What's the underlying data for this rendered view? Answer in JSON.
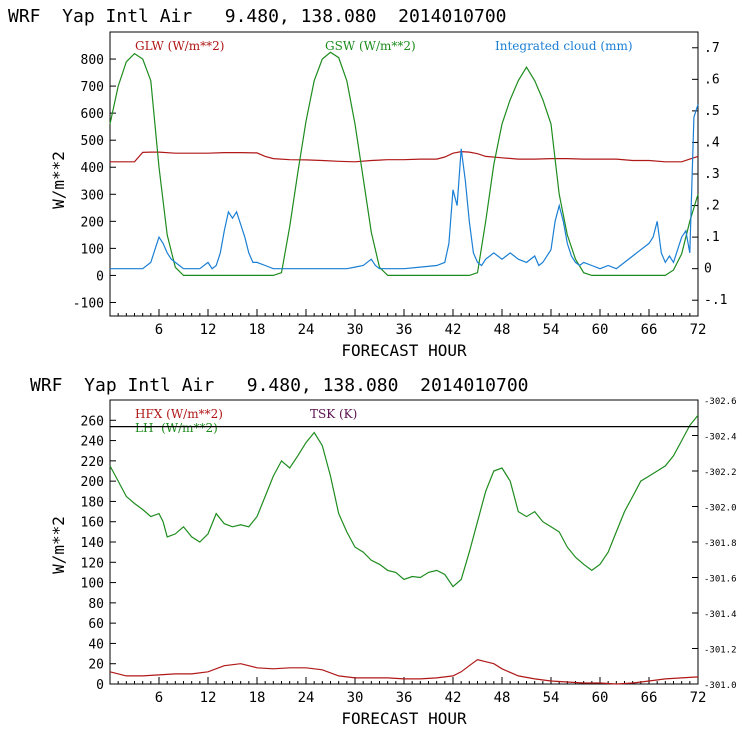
{
  "charts": [
    {
      "header": "WRF  Yap Intl Air   9.480, 138.080  2014010700",
      "ylabel": "W/m**2",
      "xlabel": "FORECAST HOUR",
      "legend": [
        {
          "label": "GLW (W/m**2)",
          "color": "#b01818"
        },
        {
          "label": "GSW (W/m**2)",
          "color": "#1e8c1e"
        },
        {
          "label": "Integrated cloud (mm)",
          "color": "#1a7fd4"
        }
      ],
      "left_ticks": [
        "-100",
        "0",
        "100",
        "200",
        "300",
        "400",
        "500",
        "600",
        "700",
        "800"
      ],
      "right_ticks": [
        "-.1",
        "0",
        ".1",
        ".2",
        ".3",
        ".4",
        ".5",
        ".6",
        ".7"
      ],
      "x_ticks": [
        "6",
        "12",
        "18",
        "24",
        "30",
        "36",
        "42",
        "48",
        "54",
        "60",
        "66",
        "72"
      ]
    },
    {
      "header": "WRF  Yap Intl Air   9.480, 138.080  2014010700",
      "ylabel": "W/m**2",
      "xlabel": "FORECAST HOUR",
      "legend": [
        {
          "label": "HFX (W/m**2)",
          "color": "#b01818"
        },
        {
          "label": "LH  (W/m**2)",
          "color": "#1e8c1e"
        },
        {
          "label": "TSK (K)",
          "color": "#5a1050"
        }
      ],
      "left_ticks": [
        "0",
        "20",
        "40",
        "60",
        "80",
        "100",
        "120",
        "140",
        "160",
        "180",
        "200",
        "220",
        "240",
        "260"
      ],
      "right_ticks": [
        "301.0",
        "301.2",
        "301.4",
        "301.6",
        "301.8",
        "302.0",
        "302.2",
        "302.4",
        "302.6"
      ],
      "x_ticks": [
        "6",
        "12",
        "18",
        "24",
        "30",
        "36",
        "42",
        "48",
        "54",
        "60",
        "66",
        "72"
      ]
    }
  ],
  "chart_data": [
    {
      "type": "line",
      "title": "WRF  Yap Intl Air   9.480, 138.080  2014010700",
      "xlabel": "FORECAST HOUR",
      "ylabel": "W/m**2",
      "xlim": [
        0,
        72
      ],
      "ylim": [
        -150,
        900
      ],
      "y2lim": [
        -0.15,
        0.75
      ],
      "series": [
        {
          "name": "GLW (W/m**2)",
          "axis": "left",
          "color": "#b01818",
          "x": [
            0,
            2,
            3,
            4,
            5,
            6,
            8,
            10,
            12,
            14,
            16,
            18,
            19,
            20,
            22,
            24,
            26,
            28,
            30,
            32,
            34,
            36,
            38,
            40,
            41,
            42,
            43,
            44,
            45,
            46,
            48,
            50,
            52,
            54,
            56,
            58,
            60,
            62,
            64,
            66,
            68,
            70,
            71,
            72
          ],
          "y": [
            420,
            420,
            420,
            455,
            456,
            456,
            452,
            452,
            452,
            454,
            454,
            453,
            440,
            432,
            428,
            427,
            425,
            422,
            420,
            425,
            428,
            428,
            430,
            430,
            438,
            452,
            458,
            456,
            450,
            440,
            435,
            430,
            430,
            432,
            432,
            430,
            430,
            430,
            425,
            425,
            420,
            420,
            430,
            440
          ]
        },
        {
          "name": "GSW (W/m**2)",
          "axis": "left",
          "color": "#1e8c1e",
          "x": [
            0,
            1,
            2,
            3,
            4,
            5,
            6,
            7,
            8,
            9,
            10,
            20,
            21,
            22,
            23,
            24,
            25,
            26,
            27,
            28,
            29,
            30,
            31,
            32,
            33,
            34,
            35,
            44,
            45,
            46,
            47,
            48,
            49,
            50,
            51,
            52,
            53,
            54,
            55,
            56,
            57,
            58,
            59,
            60,
            68,
            69,
            70,
            71,
            72
          ],
          "y": [
            560,
            700,
            790,
            820,
            800,
            720,
            400,
            150,
            30,
            0,
            0,
            0,
            10,
            180,
            380,
            570,
            720,
            800,
            825,
            805,
            720,
            560,
            360,
            160,
            30,
            0,
            0,
            0,
            10,
            200,
            410,
            560,
            650,
            720,
            770,
            720,
            650,
            560,
            300,
            150,
            60,
            10,
            0,
            0,
            0,
            20,
            80,
            200,
            300
          ]
        },
        {
          "name": "Integrated cloud (mm)",
          "axis": "right",
          "color": "#1a7fd4",
          "x": [
            0,
            4,
            5,
            5.5,
            6,
            6.5,
            7,
            7.5,
            8,
            8.5,
            9,
            10,
            11,
            12,
            12.5,
            13,
            13.5,
            14,
            14.5,
            15,
            15.5,
            16,
            16.5,
            17,
            17.5,
            18,
            19,
            20,
            21,
            28,
            29,
            30,
            31,
            32,
            32.5,
            33,
            34,
            36,
            38,
            40,
            41,
            41.5,
            42,
            42.5,
            43,
            43.5,
            44,
            44.5,
            45,
            45.5,
            46,
            47,
            48,
            49,
            50,
            51,
            52,
            52.5,
            53,
            54,
            54.5,
            55,
            55.5,
            56,
            56.5,
            57,
            57.5,
            58,
            59,
            60,
            61,
            62,
            63,
            64,
            65,
            66,
            66.5,
            67,
            67.5,
            68,
            68.5,
            69,
            69.5,
            70,
            70.5,
            71,
            71.5,
            72
          ],
          "y": [
            0,
            0,
            0.02,
            0.06,
            0.1,
            0.08,
            0.05,
            0.03,
            0.02,
            0.01,
            0,
            0,
            0,
            0.02,
            0,
            0.01,
            0.05,
            0.12,
            0.18,
            0.16,
            0.18,
            0.14,
            0.1,
            0.05,
            0.02,
            0.02,
            0.01,
            0,
            0,
            0,
            0,
            0.005,
            0.01,
            0.03,
            0.01,
            0,
            0,
            0,
            0.005,
            0.01,
            0.02,
            0.08,
            0.25,
            0.2,
            0.38,
            0.28,
            0.15,
            0.05,
            0.02,
            0.01,
            0.03,
            0.05,
            0.03,
            0.05,
            0.03,
            0.02,
            0.04,
            0.01,
            0.02,
            0.06,
            0.15,
            0.2,
            0.15,
            0.08,
            0.04,
            0.02,
            0.01,
            0.02,
            0.01,
            0,
            0.01,
            0,
            0.02,
            0.04,
            0.06,
            0.08,
            0.1,
            0.15,
            0.05,
            0.02,
            0.04,
            0.02,
            0.06,
            0.1,
            0.12,
            0.05,
            0.48,
            0.52
          ]
        }
      ]
    },
    {
      "type": "line",
      "title": "WRF  Yap Intl Air   9.480, 138.080  2014010700",
      "xlabel": "FORECAST HOUR",
      "ylabel": "W/m**2",
      "xlim": [
        0,
        72
      ],
      "ylim": [
        0,
        280
      ],
      "y2lim": [
        301.0,
        302.6
      ],
      "series": [
        {
          "name": "HFX (W/m**2)",
          "axis": "left",
          "color": "#b01818",
          "x": [
            0,
            2,
            4,
            6,
            8,
            10,
            12,
            14,
            16,
            18,
            20,
            22,
            24,
            26,
            28,
            30,
            32,
            34,
            36,
            38,
            40,
            42,
            43,
            44,
            45,
            46,
            47,
            48,
            50,
            52,
            54,
            56,
            58,
            60,
            62,
            64,
            66,
            68,
            70,
            72
          ],
          "y": [
            12,
            8,
            8,
            9,
            10,
            10,
            12,
            18,
            20,
            16,
            15,
            16,
            16,
            14,
            8,
            6,
            6,
            6,
            5,
            5,
            6,
            8,
            12,
            18,
            24,
            22,
            20,
            15,
            8,
            5,
            3,
            2,
            1,
            1,
            0,
            1,
            3,
            5,
            6,
            7
          ]
        },
        {
          "name": "LH  (W/m**2)",
          "axis": "left",
          "color": "#1e8c1e",
          "x": [
            0,
            1,
            2,
            3,
            4,
            5,
            6,
            6.5,
            7,
            8,
            9,
            10,
            11,
            12,
            13,
            14,
            15,
            16,
            17,
            18,
            19,
            20,
            21,
            22,
            23,
            24,
            25,
            26,
            27,
            28,
            29,
            30,
            31,
            32,
            33,
            34,
            35,
            36,
            37,
            38,
            39,
            40,
            41,
            42,
            43,
            44,
            45,
            46,
            47,
            48,
            49,
            50,
            51,
            52,
            53,
            54,
            55,
            56,
            57,
            58,
            59,
            60,
            61,
            62,
            63,
            64,
            65,
            66,
            67,
            68,
            69,
            70,
            71,
            72
          ],
          "y": [
            215,
            200,
            185,
            178,
            172,
            165,
            168,
            160,
            145,
            148,
            155,
            145,
            140,
            148,
            168,
            158,
            155,
            157,
            155,
            165,
            185,
            205,
            220,
            213,
            225,
            238,
            248,
            235,
            205,
            168,
            150,
            135,
            130,
            122,
            118,
            112,
            110,
            103,
            106,
            105,
            110,
            112,
            108,
            96,
            103,
            130,
            160,
            190,
            210,
            213,
            200,
            170,
            165,
            170,
            160,
            155,
            150,
            135,
            125,
            118,
            112,
            118,
            130,
            150,
            170,
            185,
            200,
            205,
            210,
            215,
            225,
            240,
            255,
            265
          ]
        },
        {
          "name": "TSK (K)",
          "axis": "right",
          "color": "#5a1050",
          "x": [
            0,
            72
          ],
          "y": [
            302.45,
            302.45
          ]
        }
      ]
    }
  ]
}
